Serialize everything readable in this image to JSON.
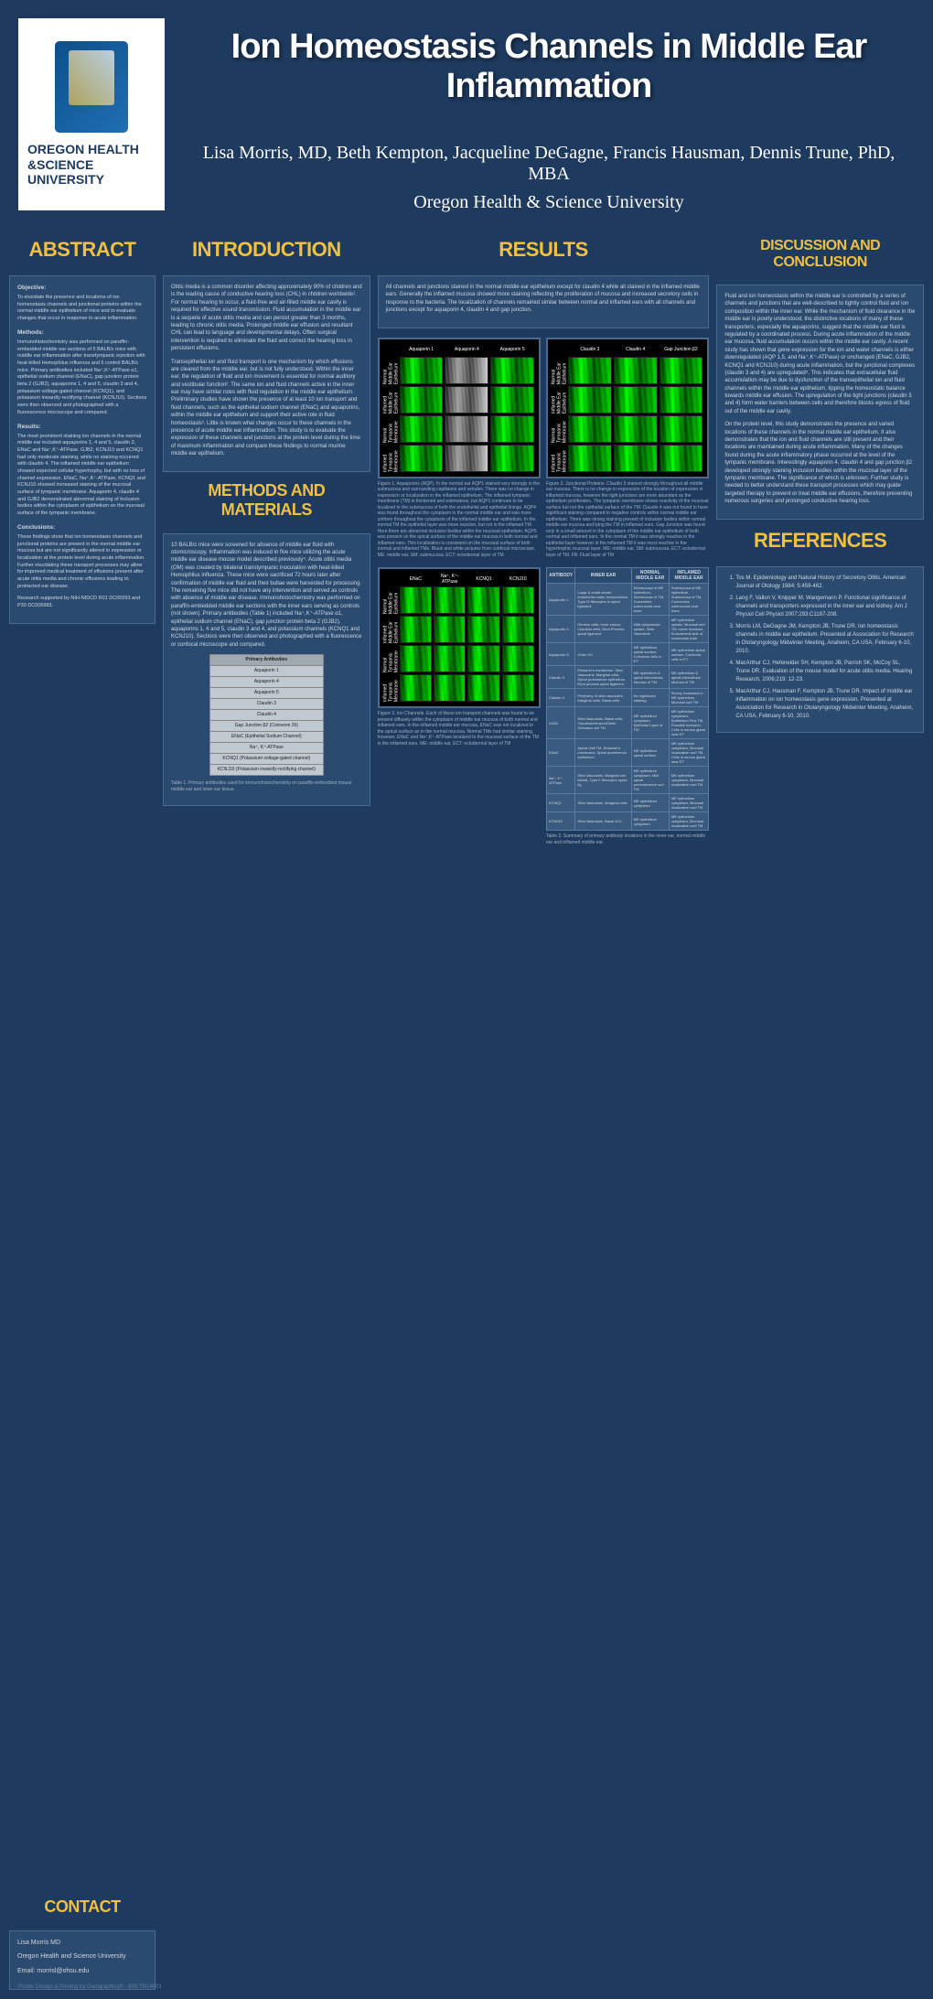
{
  "header": {
    "logo_text": "OREGON HEALTH &SCIENCE UNIVERSITY",
    "title": "Ion Homeostasis Channels in Middle Ear Inflammation",
    "authors": "Lisa Morris, MD, Beth Kempton, Jacqueline DeGagne, Francis Hausman, Dennis Trune, PhD, MBA",
    "affiliation": "Oregon Health & Science University"
  },
  "sections": {
    "abstract": "ABSTRACT",
    "intro": "INTRODUCTION",
    "methods": "METHODS AND MATERIALS",
    "results": "RESULTS",
    "discussion": "DISCUSSION AND CONCLUSION",
    "references": "REFERENCES",
    "contact": "CONTACT"
  },
  "abstract": {
    "objective_h": "Objective:",
    "objective": "To elucidate the presence and locations of ion homeostasis channels and junctional proteins within the normal middle ear epithelium of mice and to evaluate changes that occur in response to acute inflammation.",
    "methods_h": "Methods:",
    "methods": "Immunohistochemistry was performed on paraffin-embedded middle ear sections of 5 BALB/c mice with middle ear inflammation after transtympanic injection with heat-killed Hemophilus influenza and 5 control BALB/c mice. Primary antibodies included Na⁺,K⁺-ATPase α1, epithelial sodium channel (ENaC), gap junction protein beta 2 (GJB2), aquaporins 1, 4 and 5, claudin 3 and 4, potassium voltage-gated channel (KCNQ1), and potassium inwardly-rectifying channel (KCNJ10). Sections were then observed and photographed with a fluorescence microscope and compared.",
    "results_h": "Results:",
    "results": "The most prominent staining ion channels in the normal middle ear included aquaporins 1, 4 and 5, claudin 3, ENaC and Na⁺,K⁺-ATPase. GJB2, KCNJ10 and KCNQ1 had only moderate staining, while no staining occurred with claudin 4. The inflamed middle ear epithelium showed expected cellular hypertrophy, but with no loss of channel expression. ENaC, Na⁺,K⁺-ATPase, KCNQ1 and KCNJ10 showed increased staining of the mucosal surface of tympanic membrane. Aquaporin 4, claudin 4 and GJB2 demonstrated abnormal staining of inclusion bodies within the cytoplasm of epithelium on the mucosal surface of the tympanic membrane.",
    "conclusions_h": "Conclusions:",
    "conclusions": "These findings show that ion homeostasis channels and junctional proteins are present in the normal middle ear mucosa but are not significantly altered in expression or localization at the protein level during acute inflammation. Further elucidating these transport processes may allow for improved medical treatment of effusions present after acute otitis media and chronic effusions leading to protracted ear disease.",
    "support": "Research supported by NIH-NIDCD R01 DC05593 and P30 DC005983."
  },
  "intro": {
    "p1": "Otitis media is a common disorder affecting approximately 90% of children and is the leading cause of conductive hearing loss (CHL) in children worldwide¹. For normal hearing to occur, a fluid-free and air-filled middle ear cavity is required for effective sound transmission. Fluid accumulation in the middle ear is a sequela of acute otitis media and can persist greater than 3 months, leading to chronic otitis media. Prolonged middle ear effusion and resultant CHL can lead to language and developmental delays. Often surgical intervention is required to eliminate the fluid and correct the hearing loss in persistent effusions.",
    "p2": "Transepithelial ion and fluid transport is one mechanism by which effusions are cleared from the middle ear, but is not fully understood. Within the inner ear, the regulation of fluid and ion movement is essential for normal auditory and vestibular function². The same ion and fluid channels active in the inner ear may have similar roles with fluid regulation in the middle ear epithelium. Preliminary studies have shown the presence of at least 10 ion transport and fluid channels, such as the epithelial sodium channel (ENaC) and aquaporins, within the middle ear epithelium and support their active role in fluid homeostasis³. Little is known what changes occur to these channels in the presence of acute middle ear inflammation. This study is to evaluate the expression of these channels and junctions at the protein level during the time of maximum inflammation and compare these findings to normal murine middle ear epithelium."
  },
  "methods": {
    "p1": "10 BALB/c mice were screened for absence of middle ear fluid with otomicroscopy. Inflammation was induced in five mice utilizing the acute middle ear disease mouse model described previously⁴. Acute otitis media (OM) was created by bilateral transtympanic inoculation with heat-killed Hemophilus influenza. These mice were sacrificed 72 hours later after confirmation of middle ear fluid and their bullae were harvested for processing. The remaining five mice did not have any intervention and served as controls with absence of middle ear disease. Immunohistochemistry was performed on paraffin-embedded middle ear sections with the inner ears serving as controls (not shown). Primary antibodies (Table 1) included Na⁺,K⁺-ATPase α1, epithelial sodium channel (ENaC), gap junction protein beta 2 (GJB2), aquaporins 1, 4 and 5, claudin 3 and 4, and potassium channels (KCNQ1 and KCNJ10). Sections were then observed and photographed with a fluorescence or confocal microscope and compared.",
    "table_h": "Primary Antibodies",
    "table_rows": [
      "Aquaporin 1",
      "Aquaporin 4",
      "Aquaporin 5",
      "Claudin 3",
      "Claudin 4",
      "Gap Junction β2 (Connexin 26)",
      "ENaC (Epithelial Sodium Channel)",
      "Na⁺, K⁺-ATPase",
      "KCNQ1 (Potassium voltage-gated channel)",
      "KCNJ10 (Potassium inwardly-rectifying channel)"
    ],
    "table_caption": "Table 1. Primary antibodies used for immunohistochemistry on paraffin-embedded mouse middle ear and inner ear tissue."
  },
  "results": {
    "intro": "All channels and junctions stained in the normal middle ear epithelium except for claudin 4 while all stained in the inflamed middle ears. Generally the inflamed mucosa showed more staining reflecting the proliferation of mucosa and increased secretory cells in response to the bacteria. The localization of channels remained similar between normal and inflamed ears with all channels and junctions except for aquaporin 4, claudin 4 and gap junction.",
    "fig1_cols": [
      "Aquaporin 1",
      "Aquaporin 4",
      "Aquaporin 5"
    ],
    "fig2_cols": [
      "Claudin 3",
      "Claudin 4",
      "Gap Junction β2"
    ],
    "fig3_cols": [
      "ENaC",
      "Na⁺, K⁺-ATPase",
      "KCNQ1",
      "KCNJ10"
    ],
    "row_labels": [
      "Normal Middle Ear Epithelium",
      "Inflamed Middle Ear Epithelium",
      "Normal Tympanic Membrane",
      "Inflamed Tympanic Membrane"
    ],
    "fig1_caption": "Figure 1. Aquaporins (AQP). In the normal ear AQP1 stained very strongly in the submucosa and surrounding capillaries and venules. There was no change in expression or localization in the inflamed epithelium. The inflamed tympanic membrane (TM) is thickened and edematous, but AQP1 continues to be localized to the submucosa of both the endothelial and epithelial linings. AQP4 was found throughout the cytoplasm in the normal middle ear and was more uniform throughout the cytoplasm of the inflamed middle ear epithelium. In the normal TM the epithelial layer was more reactive, but not in the inflamed TM. Here there are abnormal inclusion bodies within the mucosal epithelium. AQP5 was present on the apical surface of the middle ear mucosa in both normal and inflamed ears. This localization is consistent on the mucosal surface of both normal and inflamed TMs. Black and white pictures from confocal microscope. ME: middle ear, SM: submucosa, ECT: ectodermal layer of TM",
    "fig2_caption": "Figure 2. Junctional Proteins. Claudin 3 stained strongly throughout all middle ear mucosa. There is no change in expression of the location of expression in inflamed mucosa, however the tight junctions are more abundant as the epithelium proliferates. The tympanic membrane shows reactivity of the mucosal surface but not the epithelial surface of the TM. Claudin 4 was not found to have significant staining compared to negative controls within normal middle ear epithelium. There was strong staining present of inclusion bodies within normal middle ear mucosa and lying the TM in inflamed ears. Gap Junction was found only in a small amount in the cytoplasm of the middle ear epithelium of both normal and inflamed ears. In the normal TM it was strongly reactive in the epithelial layer however in the inflamed TM it was most reactive in the hypertrophic mucosal layer. ME: middle ear, SM: submucosa, ECT: ectodermal layer of TM, FB: Fluid layer of TM",
    "fig3_caption": "Figure 3. Ion Channels. Each of these ion transport channels was found to be present diffusely within the cytoplasm of middle ear mucosa of both normal and inflamed ears. In the inflamed middle ear mucosa, ENaC was not localized to the apical surface as in the normal mucosa. Normal TMs had similar staining, however, ENaC and Na⁺,K⁺-ATPase localized to the mucosal surface of the TM in the inflamed ears. ME: middle ear, ECT: ectodermal layer of TM",
    "table2_h": [
      "ANTIBODY",
      "INNER EAR",
      "NORMAL MIDDLE EAR",
      "INFLAMED MIDDLE EAR"
    ],
    "table2_rows": [
      [
        "Aquaporin 1",
        "Large & small vessel endothelial walls, Intracochlear, Type III fibrocytes in spiral ligament",
        "Submucosa of ME epithelium, Submucosa of TM, Connective submucosa near bone",
        "Submucosa of ME epithelium, Submucosa of TM, Connective submucosa near bone"
      ],
      [
        "Aquaporin 4",
        "Hensen cells, Inner sulcus, Claudius cells, Root Process spiral ligament",
        "Mild cytoplasmic uptake, Stria Vascularis",
        "ME epithelium uptake, Mucosal surf TM, some inclusion, Endodermal side of eustachian tube"
      ],
      [
        "Aquaporin 5",
        "Outer HC",
        "ME epithelium apical surface, Columnar cells in ET",
        "ME epithelium apical surface, Columnar cells in ET"
      ],
      [
        "Claudin 3",
        "Reissner's membrane, Stria Vascularis, Marginal cells, Spiral prominence epithelium, Root process spiral ligament",
        "ME epithelium & apical intercellular, Mucosa of TM",
        "ME epithelium & apical intercellular, Mucosa of TM"
      ],
      [
        "Claudin 4",
        "Periphery of stria vascularis, Marginal cells, Basal cells",
        "No significant staining",
        "Strong inclusions in ME epithelium, Mucosal surf TM"
      ],
      [
        "GJB2",
        "Stria Vascularis, Basal cells, Claudius/Hensen/Dieter Schwann cell TM",
        "ME epithelium cytoplasm, Epithelial Layer of TM",
        "ME epithelium cytoplasm, Epithelium Plus TM, Possible inclusion, Cells in serous gland near ET"
      ],
      [
        "ENaC",
        "Apical Gall TM, Reissner's membrane, Spiral prominence epithelium",
        "ME epithelium apical surface",
        "ME epithelium cytoplasm, Mucosal localization surf TM, Cells in serous gland near ET"
      ],
      [
        "Na⁺, K⁺-ATPase",
        "Stria Vascularis, Marginal cell lateral, Type II fibrocytes spiral lig",
        "ME epithelium cytoplasm, Mild apical predominance surf TM",
        "ME epithelium cytoplasm, Mucosal localization surf TM"
      ],
      [
        "KCNQ1",
        "Stria Vascularis, Marginal cells",
        "ME epithelium cytoplasm",
        "ME epithelium cytoplasm, Mucosal localization surf TM"
      ],
      [
        "KCNJ10",
        "Stria Vascularis, Basal GCL",
        "ME epithelium cytoplasm",
        "ME epithelium cytoplasm, Mucosal localization surf TM"
      ]
    ],
    "table2_caption": "Table 2. Summary of primary antibody locations in the inner ear, normal middle ear and inflamed middle ear."
  },
  "discussion": {
    "p1": "Fluid and ion homeostasis within the middle ear is controlled by a series of channels and junctions that are well-described to tightly control fluid and ion composition within the inner ear. While the mechanism of fluid clearance in the middle ear is poorly understood, the distinctive locations of many of these transporters, especially the aquaporins, suggest that the middle ear fluid is regulated by a coordinated process. During acute inflammation of the middle ear mucosa, fluid accumulation occurs within the middle ear cavity. A recent study has shown that gene expression for the ion and water channels is either downregulated (AQP 1,5, and Na⁺,K⁺-ATPase) or unchanged (ENaC, GJB2, KCNQ1 and KCNJ10) during acute inflammation, but the junctional complexes (claudin 3 and 4) are upregulated⁵. This indicates that extracellular fluid accumulation may be due to dysfunction of the transepithelial ion and fluid channels within the middle ear epithelium, tipping the homeostatic balance towards middle ear effusion. The upregulation of the tight junctions (claudin 3 and 4) form water barriers between cells and therefore blocks egress of fluid out of the middle ear cavity.",
    "p2": "On the protein level, this study demonstrates the presence and varied locations of these channels in the normal middle ear epithelium. It also demonstrates that the ion and fluid channels are still present and their locations are maintained during acute inflammation. Many of the changes found during the acute inflammatory phase occurred at the level of the tympanic membrane. Interestingly aquaporin 4, claudin 4 and gap junction β2 developed strongly staining inclusion bodies within the mucosal layer of the tympanic membrane. The significance of which is unknown. Further study is needed to better understand these transport processes which may guide targeted therapy to prevent or treat middle ear effusions, therefore preventing numerous surgeries and prolonged conductive hearing loss."
  },
  "references": [
    "Tos M. Epidemiology and Natural History of Secretory Otitis. American Journal of Otology 1984; 5:459-462.",
    "Lang F, Vallon V, Knipper M, Wangemann P. Functional significance of channels and transporters expressed in the inner ear and kidney. Am J Physiol Cell Physiol 2007;293:C1187-208.",
    "Morris LM, DeGagne JM, Kempton JB, Trune DR. Ion homeostasis channels in middle ear epithelium. Presented at Association for Research in Otolaryngology Midwinter Meeting, Anaheim, CA USA, February 6-10, 2010.",
    "MacArthur CJ, Hefeneider SH, Kempton JB, Parrish SK, McCoy SL, Trune DR. Evaluation of the mouse model for acute otitis media. Hearing Research, 2006;219: 12-23.",
    "MacArthur CJ, Hausman F, Kempton JB, Trune DR. Impact of middle ear inflammation on ion homeostasis gene expression. Presented at Association for Research in Otolaryngology Midwinter Meeting, Anaheim, CA USA, February 6-10, 2010."
  ],
  "contact": {
    "name": "Lisa Morris MD",
    "inst": "Oregon Health and Science University",
    "email": "Email: morrisl@ohsu.edu"
  },
  "footer": "Poster Design & Printing by Genigraphics® - 800.790.4001"
}
